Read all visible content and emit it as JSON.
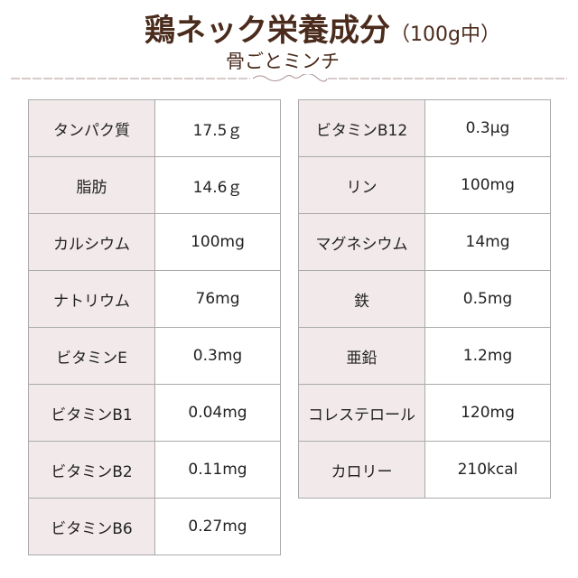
{
  "header": {
    "title": "鶏ネック栄養成分",
    "unit": "（100g中）",
    "subtitle": "骨ごとミンチ",
    "accent_color": "#4a2b1c"
  },
  "left_table": [
    {
      "name": "タンパク質",
      "value": "17.5ｇ"
    },
    {
      "name": "脂肪",
      "value": "14.6ｇ"
    },
    {
      "name": "カルシウム",
      "value": "100mg"
    },
    {
      "name": "ナトリウム",
      "value": "76mg"
    },
    {
      "name": "ビタミンE",
      "value": "0.3mg"
    },
    {
      "name": "ビタミンB1",
      "value": "0.04mg"
    },
    {
      "name": "ビタミンB2",
      "value": "0.11mg"
    },
    {
      "name": "ビタミンB6",
      "value": "0.27mg"
    }
  ],
  "right_table": [
    {
      "name": "ビタミンB12",
      "value": "0.3μg"
    },
    {
      "name": "リン",
      "value": "100mg"
    },
    {
      "name": "マグネシウム",
      "value": "14mg"
    },
    {
      "name": "鉄",
      "value": "0.5mg"
    },
    {
      "name": "亜鉛",
      "value": "1.2mg"
    },
    {
      "name": "コレステロール",
      "value": "120mg"
    },
    {
      "name": "カロリー",
      "value": "210kcal"
    }
  ]
}
